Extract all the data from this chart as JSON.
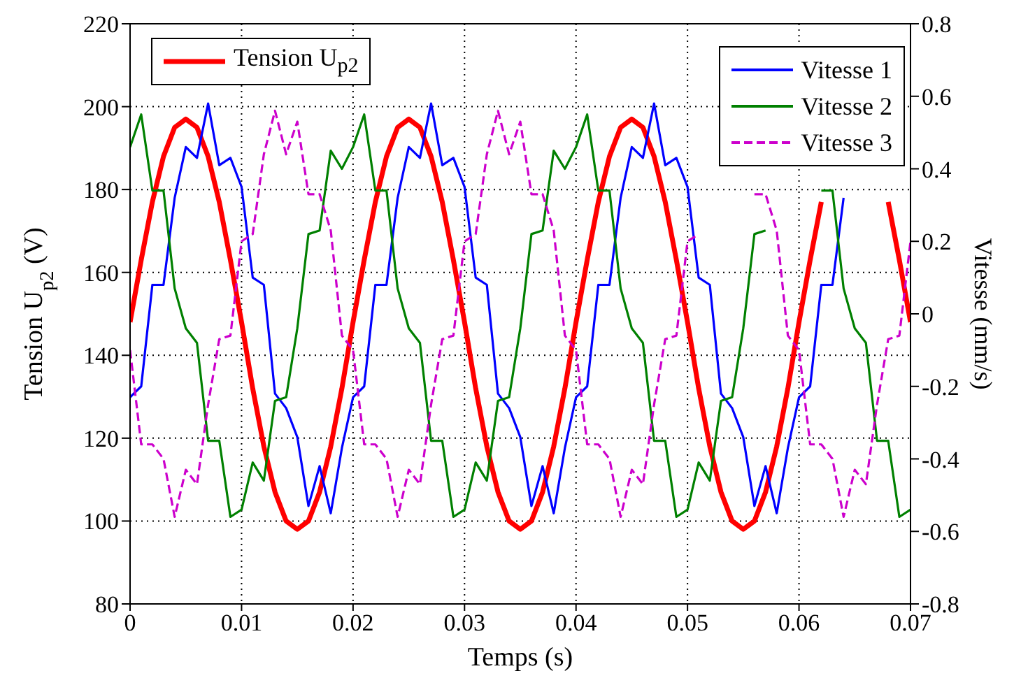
{
  "chart_data": {
    "type": "line",
    "xlabel": "Temps (s)",
    "ylabel": "Tension U$_{p2}$ (V)",
    "y2label": "Vitesse (mm/s)",
    "x": [
      0,
      0.001,
      0.002,
      0.003,
      0.004,
      0.005,
      0.006,
      0.007,
      0.008,
      0.009,
      0.01,
      0.011,
      0.012,
      0.013,
      0.014,
      0.015,
      0.016,
      0.017,
      0.018,
      0.019,
      0.02,
      0.021,
      0.022,
      0.023,
      0.024,
      0.025,
      0.026,
      0.027,
      0.028,
      0.029,
      0.03,
      0.031,
      0.032,
      0.033,
      0.034,
      0.035,
      0.036,
      0.037,
      0.038,
      0.039,
      0.04,
      0.041,
      0.042,
      0.043,
      0.044,
      0.045,
      0.046,
      0.047,
      0.048,
      0.049,
      0.05,
      0.051,
      0.052,
      0.053,
      0.054,
      0.055,
      0.056,
      0.057,
      0.058,
      0.059,
      0.06,
      0.061,
      0.062,
      0.063,
      0.064,
      0.065,
      0.066,
      0.067,
      0.068,
      0.069,
      0.07
    ],
    "series": [
      {
        "name": "Tension U$_{p2}$",
        "color": "#ff0000",
        "line_style": "solid",
        "values": [
          148,
          163,
          177,
          188,
          195,
          197,
          195,
          188,
          177,
          163,
          148,
          132,
          118,
          107,
          100,
          98,
          100,
          107,
          118,
          132,
          148,
          163,
          177,
          188,
          195,
          197,
          195,
          188,
          177,
          163,
          148,
          132,
          118,
          107,
          100,
          98,
          100,
          107,
          118,
          132,
          148,
          163,
          177,
          188,
          195,
          197,
          195,
          188,
          177,
          163,
          148,
          132,
          118,
          107,
          100,
          98,
          100,
          107,
          118,
          132,
          148,
          163,
          177,
          null,
          null,
          null,
          null,
          null,
          177,
          163,
          148
        ]
      },
      {
        "name": "Vitesse 1",
        "color": "#0000ff",
        "axis": "y2",
        "line_style": "solid",
        "values": [
          -0.23,
          -0.2,
          0.08,
          0.08,
          0.32,
          0.46,
          0.43,
          0.58,
          0.41,
          0.43,
          0.35,
          0.1,
          0.08,
          -0.22,
          -0.26,
          -0.34,
          -0.53,
          -0.42,
          -0.55,
          -0.37,
          -0.23,
          -0.2,
          0.08,
          0.08,
          0.32,
          0.46,
          0.43,
          0.58,
          0.41,
          0.43,
          0.35,
          0.1,
          0.08,
          -0.22,
          -0.26,
          -0.34,
          -0.53,
          -0.42,
          -0.55,
          -0.37,
          -0.23,
          -0.2,
          0.08,
          0.08,
          0.32,
          0.46,
          0.43,
          0.58,
          0.41,
          0.43,
          0.35,
          0.1,
          0.08,
          -0.22,
          -0.26,
          -0.34,
          -0.53,
          -0.42,
          -0.55,
          -0.37,
          -0.23,
          -0.2,
          0.08,
          0.08,
          0.32,
          null,
          null,
          null,
          null,
          null,
          null
        ]
      },
      {
        "name": "Vitesse 2",
        "color": "#008000",
        "axis": "y2",
        "line_style": "solid",
        "values": [
          0.46,
          0.55,
          0.34,
          0.34,
          0.07,
          -0.04,
          -0.08,
          -0.35,
          -0.35,
          -0.56,
          -0.54,
          -0.41,
          -0.46,
          -0.24,
          -0.23,
          -0.04,
          0.22,
          0.23,
          0.45,
          0.4,
          0.46,
          0.55,
          0.34,
          0.34,
          0.07,
          -0.04,
          -0.08,
          -0.35,
          -0.35,
          -0.56,
          -0.54,
          -0.41,
          -0.46,
          -0.24,
          -0.23,
          -0.04,
          0.22,
          0.23,
          0.45,
          0.4,
          0.46,
          0.55,
          0.34,
          0.34,
          0.07,
          -0.04,
          -0.08,
          -0.35,
          -0.35,
          -0.56,
          -0.54,
          -0.41,
          -0.46,
          -0.24,
          -0.23,
          -0.04,
          0.22,
          0.23,
          null,
          null,
          null,
          null,
          0.34,
          0.34,
          0.07,
          -0.04,
          -0.08,
          -0.35,
          -0.35,
          -0.56,
          -0.54
        ]
      },
      {
        "name": "Vitesse 3",
        "color": "#cc00cc",
        "axis": "y2",
        "line_style": "dashed",
        "values": [
          -0.1,
          -0.36,
          -0.36,
          -0.4,
          -0.56,
          -0.43,
          -0.47,
          -0.25,
          -0.07,
          -0.06,
          0.2,
          0.22,
          0.44,
          0.56,
          0.44,
          0.53,
          0.33,
          0.33,
          0.23,
          -0.06,
          -0.1,
          -0.36,
          -0.36,
          -0.4,
          -0.56,
          -0.43,
          -0.47,
          -0.25,
          -0.07,
          -0.06,
          0.2,
          0.22,
          0.44,
          0.56,
          0.44,
          0.53,
          0.33,
          0.33,
          0.23,
          -0.06,
          -0.1,
          -0.36,
          -0.36,
          -0.4,
          -0.56,
          -0.43,
          -0.47,
          -0.25,
          -0.07,
          -0.06,
          0.2,
          0.22,
          null,
          null,
          null,
          null,
          0.33,
          0.33,
          0.23,
          -0.06,
          -0.1,
          -0.36,
          -0.36,
          -0.4,
          -0.56,
          -0.43,
          -0.47,
          -0.25,
          -0.07,
          -0.06,
          0.2
        ]
      }
    ],
    "xlim": [
      0,
      0.07
    ],
    "xticks": [
      0,
      0.01,
      0.02,
      0.03,
      0.04,
      0.05,
      0.06,
      0.07
    ],
    "ylim": [
      80,
      220
    ],
    "yticks": [
      80,
      100,
      120,
      140,
      160,
      180,
      200,
      220
    ],
    "y2lim": [
      -0.8,
      0.8
    ],
    "y2ticks": [
      -0.8,
      -0.6,
      -0.4,
      -0.2,
      0,
      0.2,
      0.4,
      0.6,
      0.8
    ],
    "grid": true,
    "legend": "top",
    "marker": "none"
  }
}
